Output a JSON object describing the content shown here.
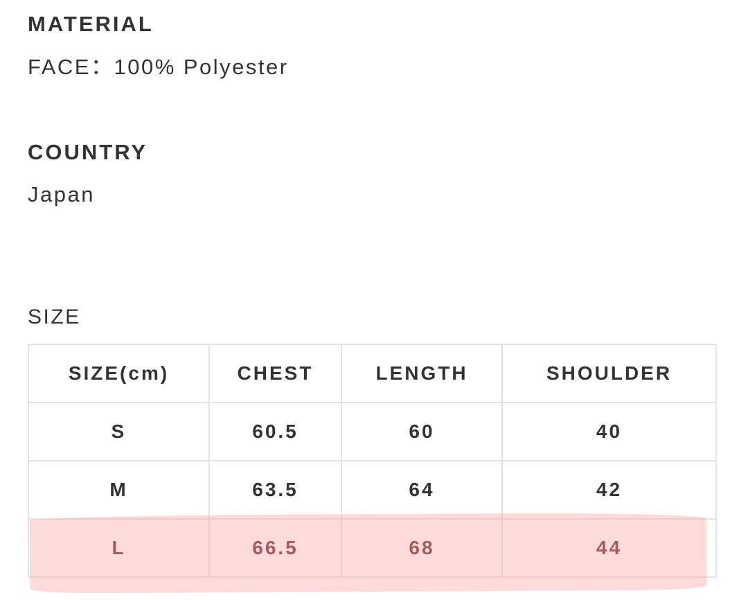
{
  "material": {
    "heading": "MATERIAL",
    "value": "FACE：100% Polyester"
  },
  "country": {
    "heading": "COUNTRY",
    "value": "Japan"
  },
  "size": {
    "heading": "SIZE",
    "columns": [
      "SIZE(cm)",
      "CHEST",
      "LENGTH",
      "SHOULDER"
    ],
    "rows": [
      [
        "S",
        "60.5",
        "60",
        "40"
      ],
      [
        "M",
        "63.5",
        "64",
        "42"
      ],
      [
        "L",
        "66.5",
        "68",
        "44"
      ]
    ],
    "highlight_color": "#ffd6d6"
  }
}
